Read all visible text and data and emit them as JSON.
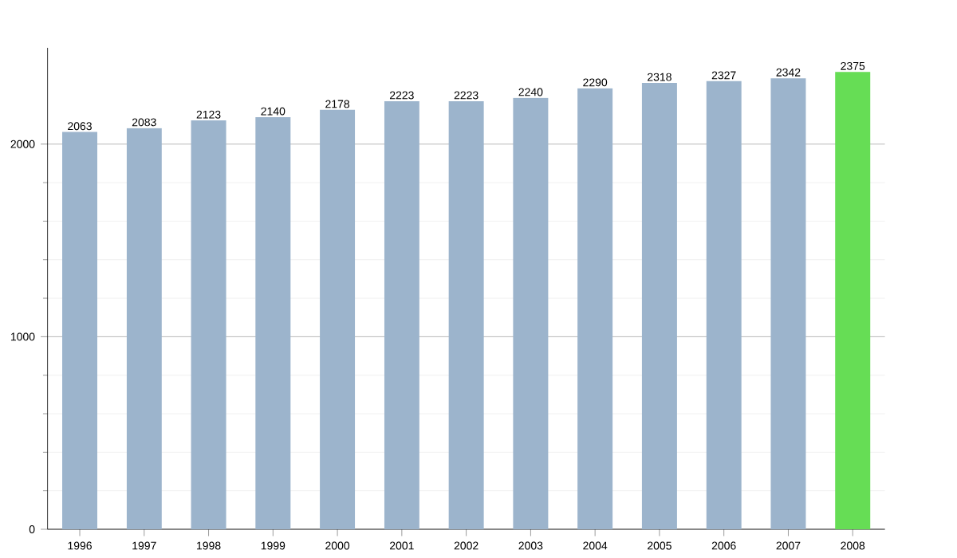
{
  "chart_data": {
    "type": "bar",
    "categories": [
      "1996",
      "1997",
      "1998",
      "1999",
      "2000",
      "2001",
      "2002",
      "2003",
      "2004",
      "2005",
      "2006",
      "2007",
      "2008"
    ],
    "values": [
      2063,
      2083,
      2123,
      2140,
      2178,
      2223,
      2223,
      2240,
      2290,
      2318,
      2327,
      2342,
      2375
    ],
    "colors": [
      "#9cb4cc",
      "#9cb4cc",
      "#9cb4cc",
      "#9cb4cc",
      "#9cb4cc",
      "#9cb4cc",
      "#9cb4cc",
      "#9cb4cc",
      "#9cb4cc",
      "#9cb4cc",
      "#9cb4cc",
      "#9cb4cc",
      "#66dd55"
    ],
    "ylim": [
      0,
      2500
    ],
    "yticks": [
      0,
      1000,
      2000
    ],
    "grid": "y",
    "data_labels": true
  }
}
